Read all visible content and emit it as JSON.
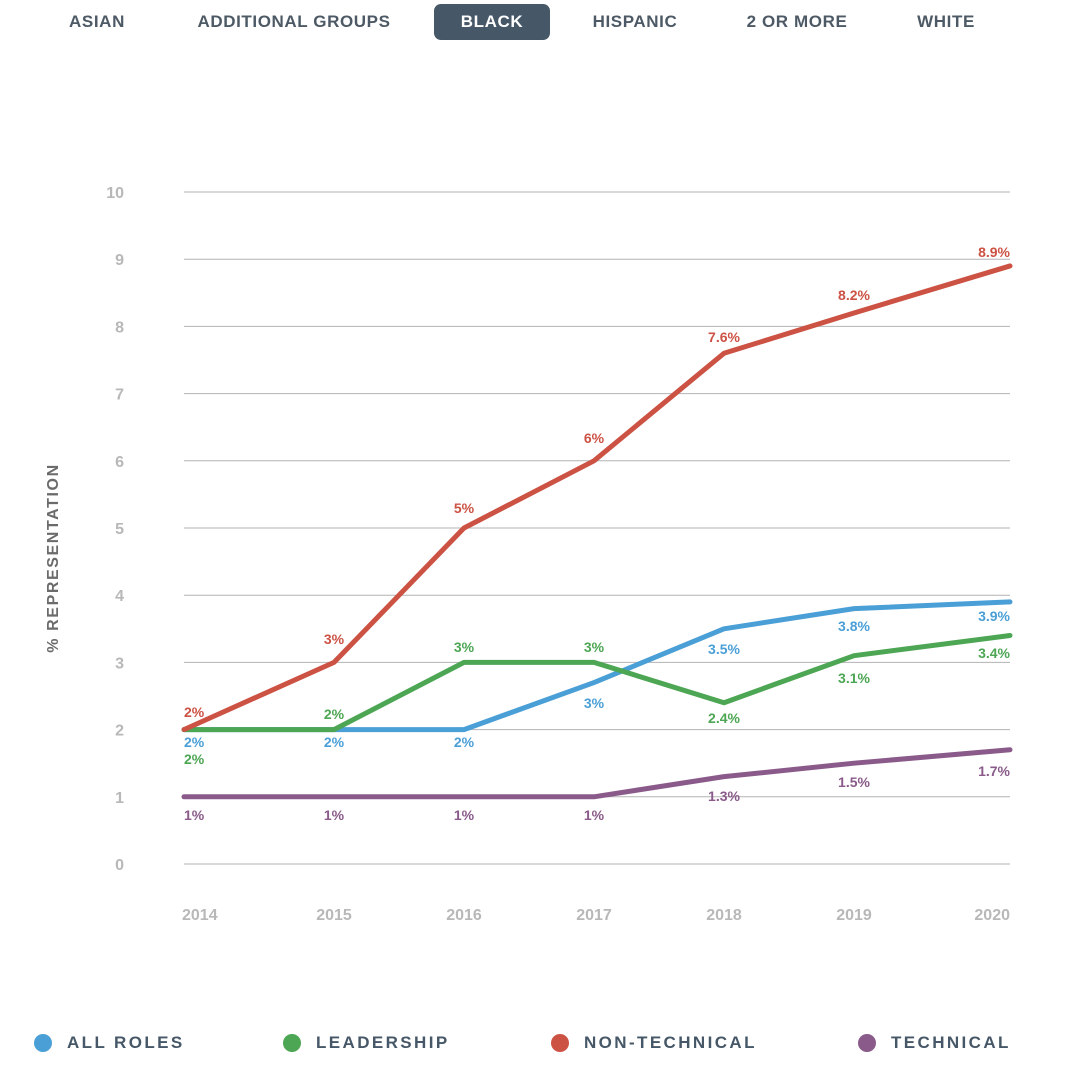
{
  "tabs": [
    {
      "label": "ASIAN",
      "active": false
    },
    {
      "label": "ADDITIONAL GROUPS",
      "active": false
    },
    {
      "label": "BLACK",
      "active": true
    },
    {
      "label": "HISPANIC",
      "active": false
    },
    {
      "label": "2 OR MORE",
      "active": false
    },
    {
      "label": "WHITE",
      "active": false
    }
  ],
  "colors": {
    "tab_active_bg": "#465767",
    "grid": "#b3b3b3",
    "tick_text": "#b8b8b8",
    "axis_title": "#6b6b6b",
    "legend_text": "#465767"
  },
  "chart_data": {
    "type": "line",
    "title": "",
    "xlabel": "",
    "ylabel": "% REPRESENTATION",
    "ylim": [
      0,
      10
    ],
    "yticks": [
      0,
      1,
      2,
      3,
      4,
      5,
      6,
      7,
      8,
      9,
      10
    ],
    "categories": [
      "2014",
      "2015",
      "2016",
      "2017",
      "2018",
      "2019",
      "2020"
    ],
    "grid": true,
    "legend_position": "bottom",
    "series": [
      {
        "name": "ALL ROLES",
        "color": "#4a9fd6",
        "values": [
          2,
          2,
          2,
          2.7,
          3.5,
          3.8,
          3.9
        ],
        "labels": [
          "2%",
          "2%",
          "2%",
          "3%",
          "3.5%",
          "3.8%",
          "3.9%"
        ]
      },
      {
        "name": "LEADERSHIP",
        "color": "#4ca653",
        "values": [
          2,
          2,
          3,
          3,
          2.4,
          3.1,
          3.4
        ],
        "labels": [
          "2%",
          "2%",
          "3%",
          "3%",
          "2.4%",
          "3.1%",
          "3.4%"
        ]
      },
      {
        "name": "NON-TECHNICAL",
        "color": "#cc5244",
        "values": [
          2,
          3,
          5,
          6,
          7.6,
          8.2,
          8.9
        ],
        "labels": [
          "2%",
          "3%",
          "5%",
          "6%",
          "7.6%",
          "8.2%",
          "8.9%"
        ]
      },
      {
        "name": "TECHNICAL",
        "color": "#8a5b8a",
        "values": [
          1,
          1,
          1,
          1,
          1.3,
          1.5,
          1.7
        ],
        "labels": [
          "1%",
          "1%",
          "1%",
          "1%",
          "1.3%",
          "1.5%",
          "1.7%"
        ]
      }
    ]
  }
}
